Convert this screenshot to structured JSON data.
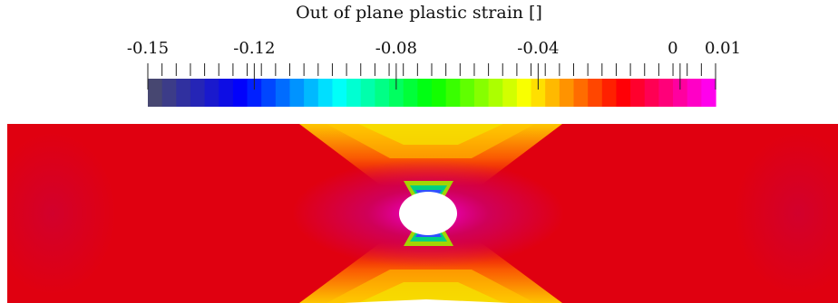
{
  "colorbar": {
    "title": "Out of plane plastic strain []",
    "range": [
      -0.15,
      0.01
    ],
    "tick_labels": [
      {
        "text": "-0.15",
        "value": -0.15
      },
      {
        "text": "-0.12",
        "value": -0.12
      },
      {
        "text": "-0.08",
        "value": -0.08
      },
      {
        "text": "-0.04",
        "value": -0.04
      },
      {
        "text": "0",
        "value": 0.0
      },
      {
        "text": "0.01",
        "value": 0.01
      }
    ],
    "minor_tick_step": 0.004,
    "color_stops": [
      "#4d4d66",
      "#0000ff",
      "#00ffff",
      "#00ff00",
      "#ffff00",
      "#ff0000",
      "#ff00ff"
    ],
    "bands": 40
  },
  "field": {
    "background_color": "#ffffff",
    "dominant_color": "#e00010",
    "hole_color": "#ffffff"
  }
}
